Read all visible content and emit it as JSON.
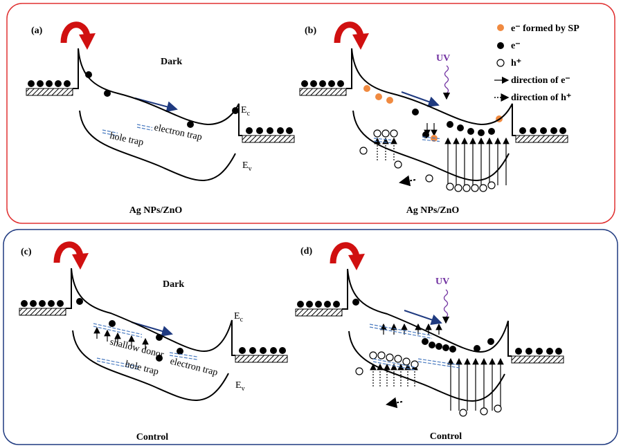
{
  "panel_a": {
    "label": "(a)",
    "condition": "Dark",
    "electron_trap": "electron trap",
    "hole_trap": "hole trap",
    "conduction_band": {
      "symbol": "E",
      "subscript": "c"
    },
    "valence_band": {
      "symbol": "E",
      "subscript": "v"
    },
    "caption": "Ag NPs/ZnO"
  },
  "panel_b": {
    "label": "(b)",
    "condition": "UV",
    "caption": "Ag NPs/ZnO"
  },
  "legend": [
    "e⁻ formed by SP",
    "e⁻",
    "h⁺",
    "direction of  e⁻",
    "direction of  h⁺"
  ],
  "panel_c": {
    "label": "(c)",
    "condition": "Dark",
    "shallow_donor": "shallow donor",
    "electron_trap": "electron trap",
    "hole_trap": "hole trap",
    "conduction_band": {
      "symbol": "E",
      "subscript": "c"
    },
    "valence_band": {
      "symbol": "E",
      "subscript": "v"
    },
    "caption": "Control"
  },
  "panel_d": {
    "label": "(d)",
    "condition": "UV",
    "caption": "Control"
  }
}
